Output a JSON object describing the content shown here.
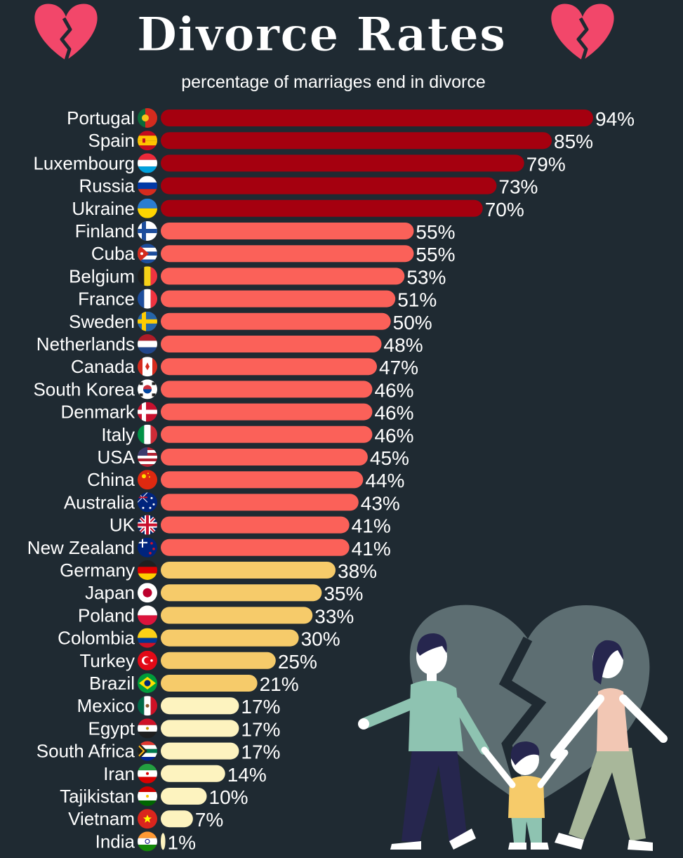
{
  "title": "Divorce Rates",
  "subtitle": "percentage of marriages end in divorce",
  "colors": {
    "background": "#1f2a32",
    "tier_high": "#a5000f",
    "tier_mid": "#fb6159",
    "tier_low": "#f6cb6a",
    "tier_lowest": "#fdf3bf",
    "heart": "#f2476a"
  },
  "chart_data": {
    "type": "bar",
    "orientation": "horizontal",
    "title": "Divorce Rates",
    "subtitle": "percentage of marriages end in divorce",
    "unit": "%",
    "categories": [
      "Portugal",
      "Spain",
      "Luxembourg",
      "Russia",
      "Ukraine",
      "Finland",
      "Cuba",
      "Belgium",
      "France",
      "Sweden",
      "Netherlands",
      "Canada",
      "South Korea",
      "Denmark",
      "Italy",
      "USA",
      "China",
      "Australia",
      "UK",
      "New Zealand",
      "Germany",
      "Japan",
      "Poland",
      "Colombia",
      "Turkey",
      "Brazil",
      "Mexico",
      "Egypt",
      "South Africa",
      "Iran",
      "Tajikistan",
      "Vietnam",
      "India"
    ],
    "values": [
      94,
      85,
      79,
      73,
      70,
      55,
      55,
      53,
      51,
      50,
      48,
      47,
      46,
      46,
      46,
      45,
      44,
      43,
      41,
      41,
      38,
      35,
      33,
      30,
      25,
      21,
      17,
      17,
      17,
      14,
      10,
      7,
      1
    ],
    "labels": [
      "94%",
      "85%",
      "79%",
      "73%",
      "70%",
      "55%",
      "55%",
      "53%",
      "51%",
      "50%",
      "48%",
      "47%",
      "46%",
      "46%",
      "46%",
      "45%",
      "44%",
      "43%",
      "41%",
      "41%",
      "38%",
      "35%",
      "33%",
      "30%",
      "25%",
      "21%",
      "17%",
      "17%",
      "17%",
      "14%",
      "10%",
      "7%",
      "1%"
    ],
    "flag_icons": [
      "portugal-flag-icon",
      "spain-flag-icon",
      "luxembourg-flag-icon",
      "russia-flag-icon",
      "ukraine-flag-icon",
      "finland-flag-icon",
      "cuba-flag-icon",
      "belgium-flag-icon",
      "france-flag-icon",
      "sweden-flag-icon",
      "netherlands-flag-icon",
      "canada-flag-icon",
      "south-korea-flag-icon",
      "denmark-flag-icon",
      "italy-flag-icon",
      "usa-flag-icon",
      "china-flag-icon",
      "australia-flag-icon",
      "uk-flag-icon",
      "new-zealand-flag-icon",
      "germany-flag-icon",
      "japan-flag-icon",
      "poland-flag-icon",
      "colombia-flag-icon",
      "turkey-flag-icon",
      "brazil-flag-icon",
      "mexico-flag-icon",
      "egypt-flag-icon",
      "south-africa-flag-icon",
      "iran-flag-icon",
      "tajikistan-flag-icon",
      "vietnam-flag-icon",
      "india-flag-icon"
    ],
    "color_tiers": [
      {
        "min": 70,
        "color": "#a5000f"
      },
      {
        "min": 40,
        "color": "#fb6159"
      },
      {
        "min": 20,
        "color": "#f6cb6a"
      },
      {
        "min": 0,
        "color": "#fdf3bf"
      }
    ],
    "xlim": [
      0,
      100
    ],
    "grid": false,
    "legend": "none"
  },
  "decorations": {
    "left_icon": "broken-heart-icon",
    "right_icon": "broken-heart-icon",
    "illustration": "separating-family-illustration"
  }
}
